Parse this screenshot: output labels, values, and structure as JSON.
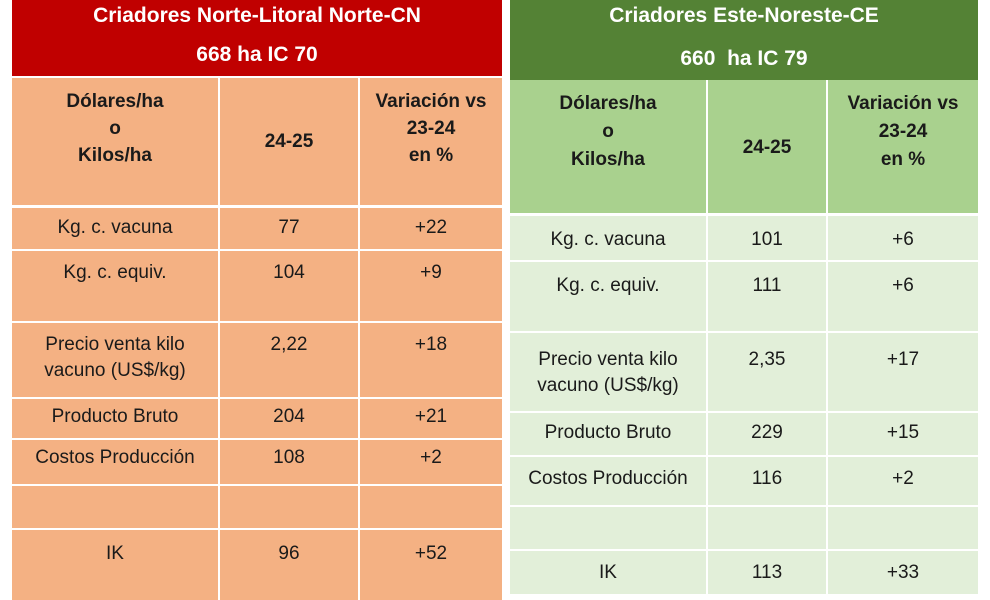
{
  "left": {
    "title_line1": "Criadores Norte-Litoral Norte-CN",
    "title_line2": "668 ha IC 70",
    "col1_header": [
      "Dólares/ha",
      "o",
      "Kilos/ha"
    ],
    "col2_header": "24-25",
    "col3_header": [
      "Variación vs",
      "23-24",
      "en %"
    ],
    "rows": [
      {
        "label": "Kg. c. vacuna",
        "value": "77",
        "variation": "+22"
      },
      {
        "label": "Kg. c. equiv.",
        "value": "104",
        "variation": "+9"
      },
      {
        "label": "Precio venta kilo vacuno (US$/kg)",
        "label_line1": "Precio venta kilo",
        "label_line2": "vacuno (US$/kg)",
        "value": "2,22",
        "variation": "+18"
      },
      {
        "label": "Producto Bruto",
        "value": "204",
        "variation": "+21"
      },
      {
        "label": "Costos Producción",
        "value": "108",
        "variation": "+2"
      },
      {
        "label": "",
        "value": "",
        "variation": ""
      },
      {
        "label": "IK",
        "value": "96",
        "variation": "+52"
      }
    ]
  },
  "right": {
    "title_line1": "Criadores Este-Noreste-CE",
    "title_line2": "660  ha IC 79",
    "col1_header": [
      "Dólares/ha",
      "o",
      "Kilos/ha"
    ],
    "col2_header": "24-25",
    "col3_header": [
      "Variación vs",
      "23-24",
      "en %"
    ],
    "rows": [
      {
        "label": "Kg. c. vacuna",
        "value": "101",
        "variation": "+6"
      },
      {
        "label": "Kg. c. equiv.",
        "value": "111",
        "variation": "+6"
      },
      {
        "label": "Precio venta kilo vacuno (US$/kg)",
        "label_line1": "Precio venta kilo",
        "label_line2": "vacuno (US$/kg)",
        "value": "2,35",
        "variation": "+17"
      },
      {
        "label": "Producto Bruto",
        "value": "229",
        "variation": "+15"
      },
      {
        "label": "Costos Producción",
        "value": "116",
        "variation": "+2"
      },
      {
        "label": "",
        "value": "",
        "variation": ""
      },
      {
        "label": "IK",
        "value": "113",
        "variation": "+33"
      }
    ]
  },
  "colors": {
    "left_header": "#c00000",
    "left_body": "#f4b183",
    "right_header": "#548235",
    "right_head_row": "#a9d18e",
    "right_body": "#e2efd9"
  }
}
